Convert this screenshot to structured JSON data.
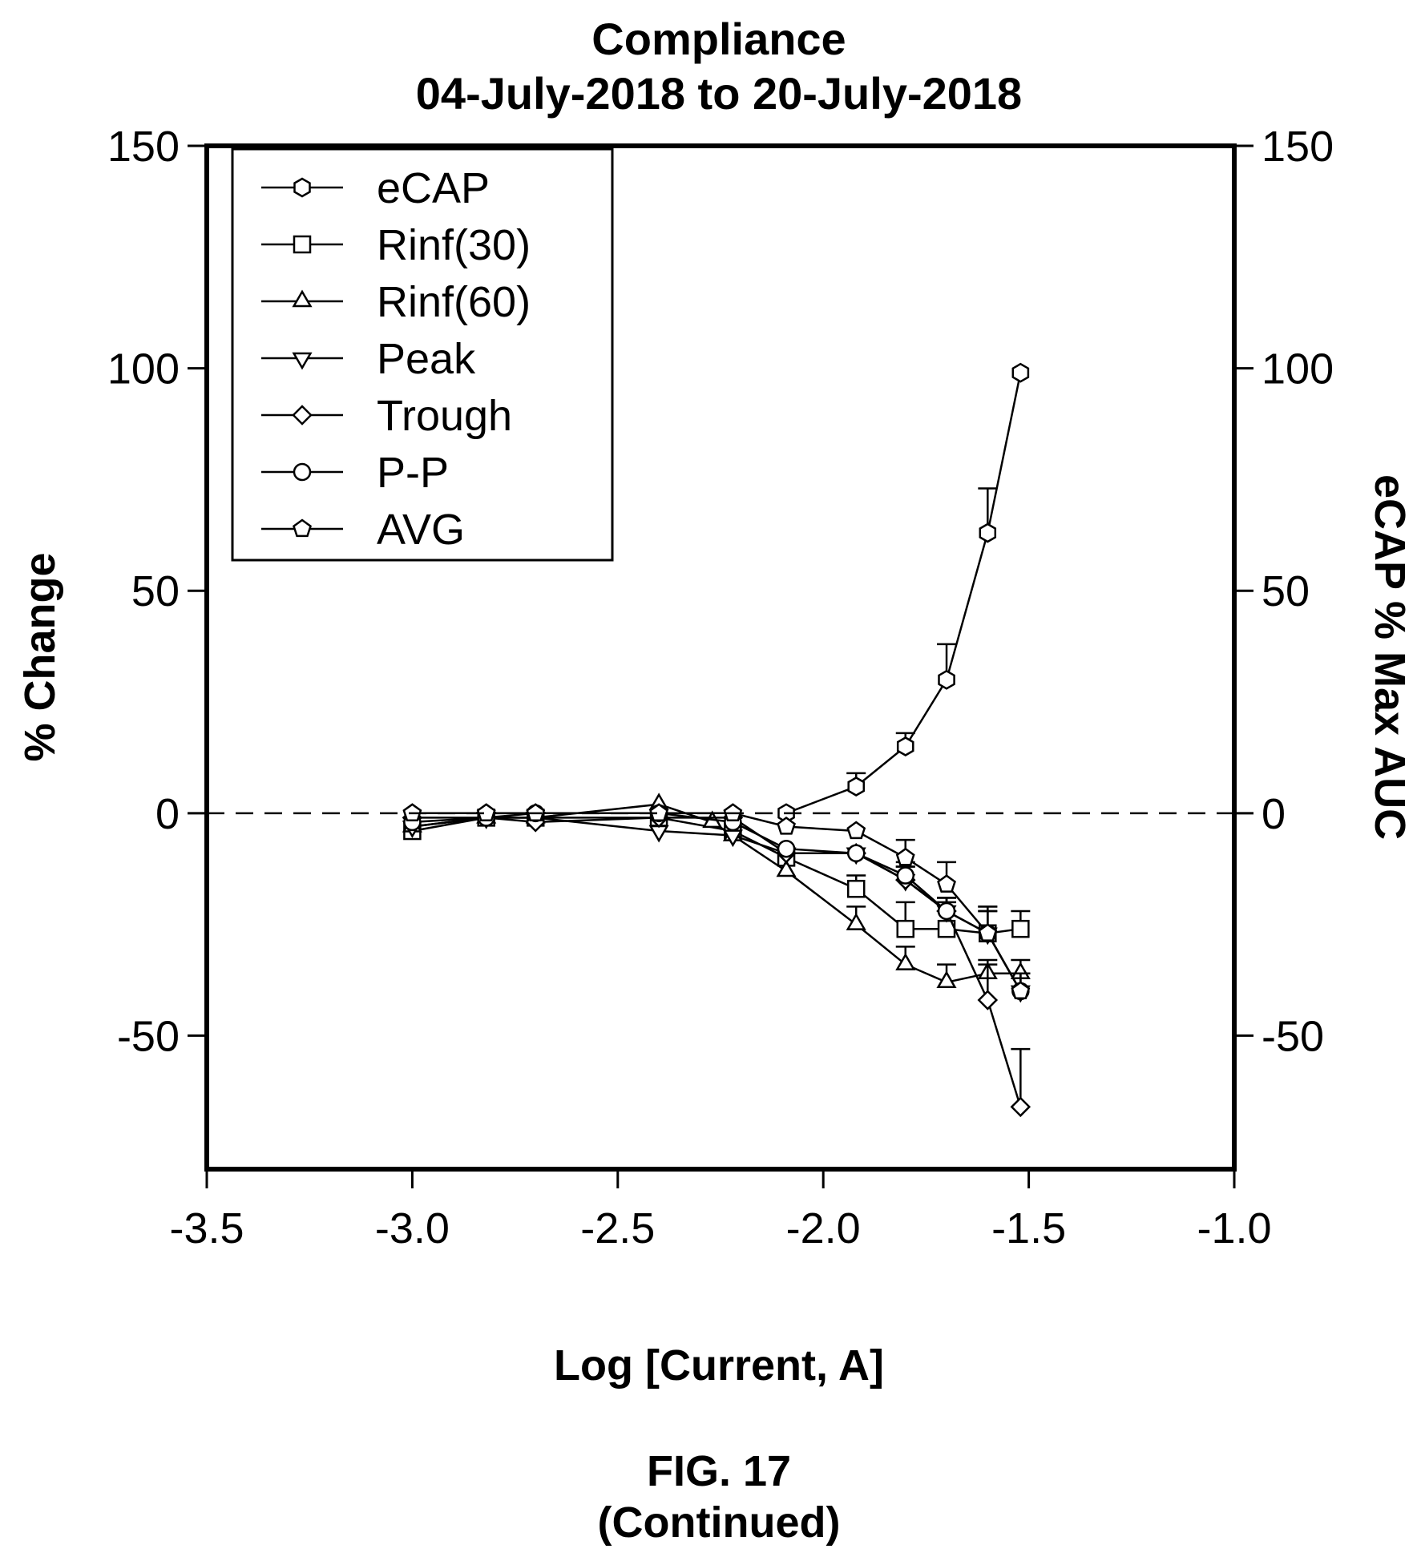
{
  "chart_data": {
    "type": "line",
    "title": "Compliance",
    "subtitle": "04-July-2018 to 20-July-2018",
    "xlabel": "Log [Current, A]",
    "ylabel": "% Change",
    "ylabel_right": "eCAP % Max AUC",
    "xlim": [
      -3.5,
      -1.0
    ],
    "ylim": [
      -80,
      150
    ],
    "xticks": [
      "-3.5",
      "-3.0",
      "-2.5",
      "-2.0",
      "-1.5",
      "-1.0"
    ],
    "xtick_values": [
      -3.5,
      -3.0,
      -2.5,
      -2.0,
      -1.5,
      -1.0
    ],
    "yticks": [
      "150",
      "100",
      "50",
      "0",
      "-50"
    ],
    "ytick_values": [
      150,
      100,
      50,
      0,
      -50
    ],
    "yticks_right": [
      "150",
      "100",
      "50",
      "0",
      "-50"
    ],
    "reference_line": {
      "y": 0,
      "style": "dashed"
    },
    "grid": false,
    "legend_position": "top-left",
    "series": [
      {
        "name": "eCAP",
        "marker": "hexagon",
        "points": [
          [
            -2.09,
            0
          ],
          [
            -1.92,
            6
          ],
          [
            -1.8,
            15
          ],
          [
            -1.7,
            30
          ],
          [
            -1.6,
            63
          ],
          [
            -1.52,
            99
          ]
        ],
        "error_upper": [
          0,
          9,
          18,
          38,
          73,
          99
        ]
      },
      {
        "name": "Rinf(30)",
        "marker": "square",
        "points": [
          [
            -3.0,
            -4
          ],
          [
            -2.82,
            -1
          ],
          [
            -2.7,
            -1
          ],
          [
            -2.4,
            -1
          ],
          [
            -2.22,
            -4
          ],
          [
            -2.09,
            -10
          ],
          [
            -1.92,
            -17
          ],
          [
            -1.8,
            -26
          ],
          [
            -1.7,
            -26
          ],
          [
            -1.6,
            -27
          ],
          [
            -1.52,
            -26
          ]
        ],
        "error_upper": [
          -4,
          -1,
          -1,
          -1,
          -4,
          -10,
          -14,
          -20,
          -20,
          -21,
          -22
        ]
      },
      {
        "name": "Rinf(60)",
        "marker": "triangle-up",
        "points": [
          [
            -3.0,
            -3
          ],
          [
            -2.82,
            -1
          ],
          [
            -2.7,
            -1
          ],
          [
            -2.4,
            2
          ],
          [
            -2.27,
            -2
          ],
          [
            -2.22,
            -5
          ],
          [
            -2.09,
            -13
          ],
          [
            -1.92,
            -25
          ],
          [
            -1.8,
            -34
          ],
          [
            -1.7,
            -38
          ],
          [
            -1.6,
            -36
          ],
          [
            -1.52,
            -36
          ]
        ],
        "error_upper": [
          -3,
          -1,
          -1,
          2,
          -2,
          -5,
          -13,
          -21,
          -30,
          -34,
          -33,
          -33
        ]
      },
      {
        "name": "Peak",
        "marker": "triangle-down",
        "points": [
          [
            -3.0,
            -3
          ],
          [
            -2.82,
            -1
          ],
          [
            -2.7,
            -1
          ],
          [
            -2.4,
            -4
          ],
          [
            -2.22,
            -5
          ],
          [
            -2.09,
            -9
          ],
          [
            -1.92,
            -9
          ],
          [
            -1.8,
            -15
          ],
          [
            -1.7,
            -22
          ],
          [
            -1.6,
            -27
          ],
          [
            -1.52,
            -40
          ]
        ],
        "error_upper": [
          -3,
          -1,
          -1,
          -4,
          -5,
          -9,
          -9,
          -12,
          -19,
          -22,
          -36
        ]
      },
      {
        "name": "Trough",
        "marker": "diamond",
        "points": [
          [
            -3.0,
            -1
          ],
          [
            -2.82,
            -1
          ],
          [
            -2.7,
            -2
          ],
          [
            -2.4,
            -1
          ],
          [
            -2.22,
            -1
          ],
          [
            -2.09,
            -9
          ],
          [
            -1.92,
            -9
          ],
          [
            -1.8,
            -15
          ],
          [
            -1.7,
            -22
          ],
          [
            -1.6,
            -42
          ],
          [
            -1.52,
            -66
          ]
        ],
        "error_upper": [
          -1,
          -1,
          -2,
          -1,
          -1,
          -9,
          -9,
          -12,
          -19,
          -34,
          -53
        ]
      },
      {
        "name": "P-P",
        "marker": "circle",
        "points": [
          [
            -3.0,
            -2
          ],
          [
            -2.82,
            -1
          ],
          [
            -2.7,
            0
          ],
          [
            -2.4,
            0
          ],
          [
            -2.22,
            -2
          ],
          [
            -2.09,
            -8
          ],
          [
            -1.92,
            -9
          ],
          [
            -1.8,
            -14
          ],
          [
            -1.7,
            -22
          ],
          [
            -1.6,
            -27
          ],
          [
            -1.52,
            -40
          ]
        ],
        "error_upper": [
          -2,
          -1,
          0,
          0,
          -2,
          -8,
          -9,
          -11,
          -19,
          -22,
          -36
        ]
      },
      {
        "name": "AVG",
        "marker": "pentagon",
        "points": [
          [
            -3.0,
            0
          ],
          [
            -2.82,
            0
          ],
          [
            -2.7,
            0
          ],
          [
            -2.4,
            0
          ],
          [
            -2.22,
            0
          ],
          [
            -2.09,
            -3
          ],
          [
            -1.92,
            -4
          ],
          [
            -1.8,
            -10
          ],
          [
            -1.7,
            -16
          ],
          [
            -1.6,
            -27
          ],
          [
            -1.52,
            -40
          ]
        ],
        "error_upper": [
          0,
          0,
          0,
          0,
          0,
          -3,
          -4,
          -6,
          -11,
          -21,
          -36
        ]
      }
    ]
  },
  "figure": {
    "caption_line1": "FIG. 17",
    "caption_line2": "(Continued)"
  }
}
